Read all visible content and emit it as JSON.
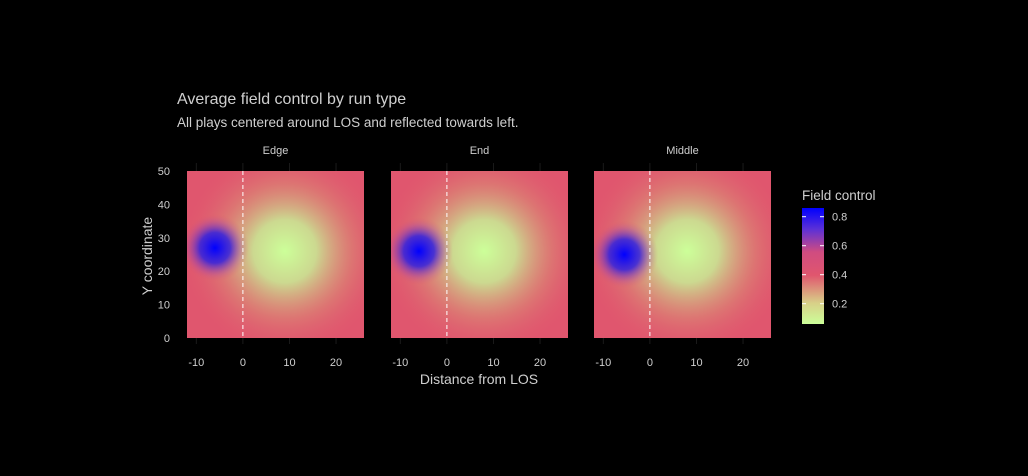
{
  "chart_data": {
    "type": "heatmap",
    "title": "Average field control by run type",
    "subtitle": "All plays centered around LOS and reflected towards left.",
    "xlabel": "Distance from LOS",
    "ylabel": "Y coordinate",
    "xlim": [
      -12,
      26
    ],
    "ylim": [
      0,
      50
    ],
    "x_ticks": [
      -10,
      0,
      10,
      20
    ],
    "y_ticks": [
      0,
      10,
      20,
      30,
      40,
      50
    ],
    "reference_line_x": 0,
    "panels": [
      {
        "name": "Edge",
        "blue_center": [
          -6,
          27
        ],
        "green_center": [
          9,
          26
        ]
      },
      {
        "name": "End",
        "blue_center": [
          -6,
          26
        ],
        "green_center": [
          8,
          26
        ]
      },
      {
        "name": "Middle",
        "blue_center": [
          -5.5,
          25
        ],
        "green_center": [
          8,
          26
        ]
      }
    ],
    "legend": {
      "title": "Field control",
      "ticks": [
        "0.8",
        "0.6",
        "0.4",
        "0.2"
      ],
      "tick_values": [
        0.8,
        0.6,
        0.4,
        0.2
      ],
      "range": [
        0.06,
        0.86
      ],
      "colors": {
        "low": "#ccff99",
        "mid": "#e0566e",
        "high": "#0000ff"
      }
    },
    "colors": {
      "background": "#000000",
      "text": "#cfcfcf",
      "reference_line": "#ffffff"
    }
  }
}
